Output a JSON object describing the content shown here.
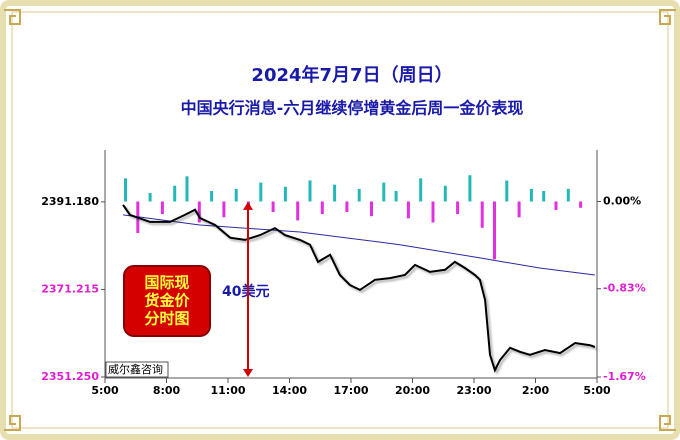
{
  "chart_data": {
    "type": "line",
    "title": "2024年7月7日（周日）",
    "subtitle": "中国央行消息-六月继续停增黄金后周一金价表现",
    "xlim": [
      5,
      29
    ],
    "xticks": [
      {
        "value": 5,
        "label": "5:00"
      },
      {
        "value": 8,
        "label": "8:00"
      },
      {
        "value": 11,
        "label": "11:00"
      },
      {
        "value": 14,
        "label": "14:00"
      },
      {
        "value": 17,
        "label": "17:00"
      },
      {
        "value": 20,
        "label": "20:00"
      },
      {
        "value": 23,
        "label": "23:00"
      },
      {
        "value": 26,
        "label": "2:00"
      },
      {
        "value": 29,
        "label": "5:00"
      }
    ],
    "ylim": [
      2351.25,
      2403.0
    ],
    "yticks": [
      {
        "value": 2391.18,
        "label": "2391.180"
      },
      {
        "value": 2371.215,
        "label": "2371.215"
      },
      {
        "value": 2351.25,
        "label": "2351.250"
      }
    ],
    "ytick_colors": [
      "#000000",
      "#e020d0",
      "#e020d0"
    ],
    "y2lim": [
      -1.67,
      0.49
    ],
    "y2ticks": [
      {
        "value": 0,
        "label": "0.00%"
      },
      {
        "value": -0.83,
        "label": "-0.83%"
      },
      {
        "value": -1.67,
        "label": "-1.67%"
      }
    ],
    "y2tick_colors": [
      "#000000",
      "#e020d0",
      "#e020d0"
    ],
    "series": [
      {
        "type": "bar",
        "axis": "y2",
        "color_up": "#22b8b8",
        "color_down": "#e030e0",
        "x": [
          6.0,
          6.6,
          7.2,
          7.8,
          8.4,
          9.0,
          9.6,
          10.2,
          10.8,
          11.4,
          12.0,
          12.6,
          13.2,
          13.8,
          14.4,
          15.0,
          15.6,
          16.2,
          16.8,
          17.4,
          18.0,
          18.6,
          19.2,
          19.8,
          20.4,
          21.0,
          21.6,
          22.2,
          22.8,
          23.4,
          24.0,
          24.6,
          25.2,
          25.8,
          26.4,
          27.0,
          27.6,
          28.2
        ],
        "values": [
          0.22,
          -0.3,
          0.08,
          -0.12,
          0.15,
          0.24,
          -0.2,
          0.1,
          -0.15,
          0.12,
          -0.08,
          0.18,
          -0.1,
          0.14,
          -0.18,
          0.2,
          -0.12,
          0.16,
          -0.1,
          0.12,
          -0.14,
          0.18,
          0.1,
          -0.16,
          0.22,
          -0.2,
          0.15,
          -0.12,
          0.25,
          -0.25,
          -0.55,
          0.2,
          -0.15,
          0.12,
          0.1,
          -0.08,
          0.12,
          -0.06
        ]
      },
      {
        "type": "line",
        "color": "#2a2aa0",
        "x": [
          5.88,
          9.63,
          14.51,
          19.39,
          23.29,
          26.2,
          28.9
        ],
        "values": [
          2388.2,
          2385.9,
          2384.3,
          2381.4,
          2378.4,
          2376.1,
          2374.5
        ]
      },
      {
        "type": "line",
        "color": "#000000",
        "x": [
          5.88,
          6.22,
          7.2,
          8.17,
          8.9,
          9.39,
          9.63,
          10.37,
          11.1,
          11.83,
          12.56,
          13.29,
          13.78,
          14.51,
          15.0,
          15.39,
          15.98,
          16.46,
          16.95,
          17.44,
          18.17,
          18.9,
          19.63,
          20.12,
          20.85,
          21.59,
          22.07,
          22.56,
          23.05,
          23.29,
          23.54,
          23.78,
          24.02,
          24.27,
          24.76,
          25.24,
          25.73,
          26.46,
          27.2,
          27.93,
          28.66,
          28.9
        ],
        "values": [
          2390.5,
          2388.2,
          2386.6,
          2386.6,
          2388.2,
          2389.4,
          2387.5,
          2385.9,
          2383.0,
          2382.5,
          2383.6,
          2385.2,
          2383.6,
          2382.5,
          2381.4,
          2377.5,
          2379.1,
          2374.5,
          2372.2,
          2371.1,
          2373.4,
          2373.8,
          2374.5,
          2376.8,
          2375.2,
          2375.7,
          2377.5,
          2376.1,
          2374.5,
          2373.4,
          2368.8,
          2356.3,
          2352.8,
          2355.1,
          2357.9,
          2357.0,
          2356.3,
          2357.4,
          2356.7,
          2359.0,
          2358.5,
          2358.1
        ]
      }
    ],
    "annotation": "40美元",
    "badge": [
      "国际现",
      "货金价",
      "分时图"
    ],
    "watermark": "威尔鑫咨询"
  }
}
